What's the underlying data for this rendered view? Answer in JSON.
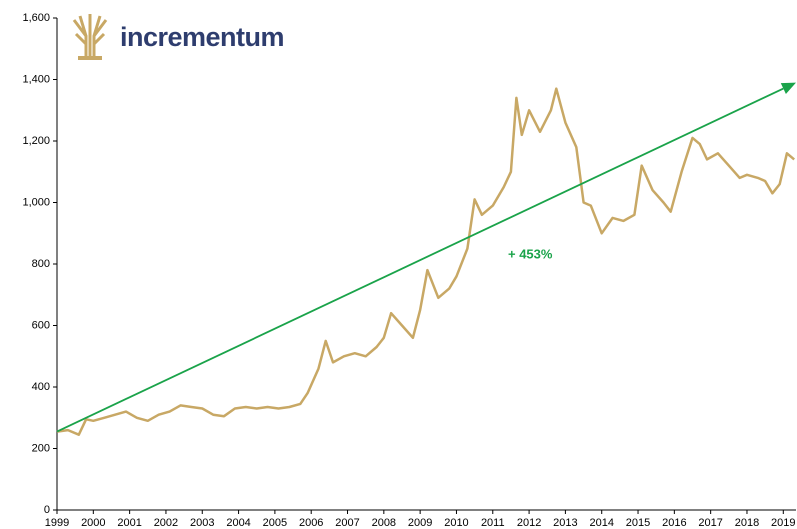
{
  "logo": "incrementum",
  "chart_data": {
    "type": "line",
    "x": [
      1999.0,
      1999.3,
      1999.6,
      1999.8,
      2000.0,
      2000.3,
      2000.6,
      2000.9,
      2001.2,
      2001.5,
      2001.8,
      2002.1,
      2002.4,
      2002.7,
      2003.0,
      2003.3,
      2003.6,
      2003.9,
      2004.2,
      2004.5,
      2004.8,
      2005.1,
      2005.4,
      2005.7,
      2005.9,
      2006.2,
      2006.4,
      2006.6,
      2006.9,
      2007.2,
      2007.5,
      2007.8,
      2008.0,
      2008.2,
      2008.5,
      2008.8,
      2009.0,
      2009.2,
      2009.5,
      2009.8,
      2010.0,
      2010.3,
      2010.5,
      2010.7,
      2011.0,
      2011.3,
      2011.5,
      2011.65,
      2011.8,
      2012.0,
      2012.3,
      2012.6,
      2012.75,
      2013.0,
      2013.3,
      2013.5,
      2013.7,
      2014.0,
      2014.3,
      2014.6,
      2014.9,
      2015.1,
      2015.4,
      2015.7,
      2015.9,
      2016.2,
      2016.5,
      2016.7,
      2016.9,
      2017.2,
      2017.5,
      2017.8,
      2018.0,
      2018.3,
      2018.5,
      2018.7,
      2018.9,
      2019.1,
      2019.3
    ],
    "values": [
      255,
      260,
      245,
      295,
      290,
      300,
      310,
      320,
      300,
      290,
      310,
      320,
      340,
      335,
      330,
      310,
      305,
      330,
      335,
      330,
      335,
      330,
      335,
      345,
      380,
      460,
      550,
      480,
      500,
      510,
      500,
      530,
      560,
      640,
      600,
      560,
      650,
      780,
      690,
      720,
      760,
      850,
      1010,
      960,
      990,
      1050,
      1100,
      1340,
      1220,
      1300,
      1230,
      1300,
      1370,
      1260,
      1180,
      1000,
      990,
      900,
      950,
      940,
      960,
      1120,
      1040,
      1000,
      970,
      1100,
      1210,
      1190,
      1140,
      1160,
      1120,
      1080,
      1090,
      1080,
      1070,
      1030,
      1060,
      1160,
      1140
    ],
    "color": "#c8a865",
    "trend": {
      "x": [
        1999.0,
        2019.35
      ],
      "values": [
        255,
        1390
      ],
      "color": "#1aa34a"
    },
    "annotation": "+ 453%",
    "xlim": [
      1999,
      2019.35
    ],
    "xticks": [
      1999,
      2000,
      2001,
      2002,
      2003,
      2004,
      2005,
      2006,
      2007,
      2008,
      2009,
      2010,
      2011,
      2012,
      2013,
      2014,
      2015,
      2016,
      2017,
      2018,
      2019
    ],
    "ylim": [
      0,
      1600
    ],
    "yticks": [
      0,
      200,
      400,
      600,
      800,
      {
        "value": 1000,
        "label": "1,000"
      },
      {
        "value": 1200,
        "label": "1,200"
      },
      {
        "value": 1400,
        "label": "1,400"
      },
      {
        "value": 1600,
        "label": "1,600"
      }
    ],
    "grid": false
  }
}
